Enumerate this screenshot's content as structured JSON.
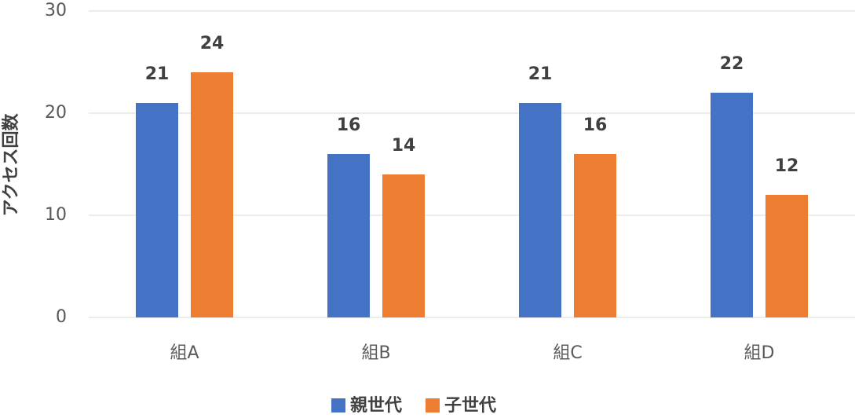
{
  "chart_data": {
    "type": "bar",
    "y_label": "アクセス回数",
    "categories": [
      "組A",
      "組B",
      "組C",
      "組D"
    ],
    "series": [
      {
        "name": "親世代",
        "color": "#4472c4",
        "values": [
          21,
          16,
          21,
          22
        ]
      },
      {
        "name": "子世代",
        "color": "#ed7d31",
        "values": [
          24,
          14,
          16,
          12
        ]
      }
    ],
    "ylim": [
      0,
      30
    ],
    "yticks": [
      0,
      10,
      20,
      30
    ],
    "grid": true,
    "legend": "bottom"
  }
}
